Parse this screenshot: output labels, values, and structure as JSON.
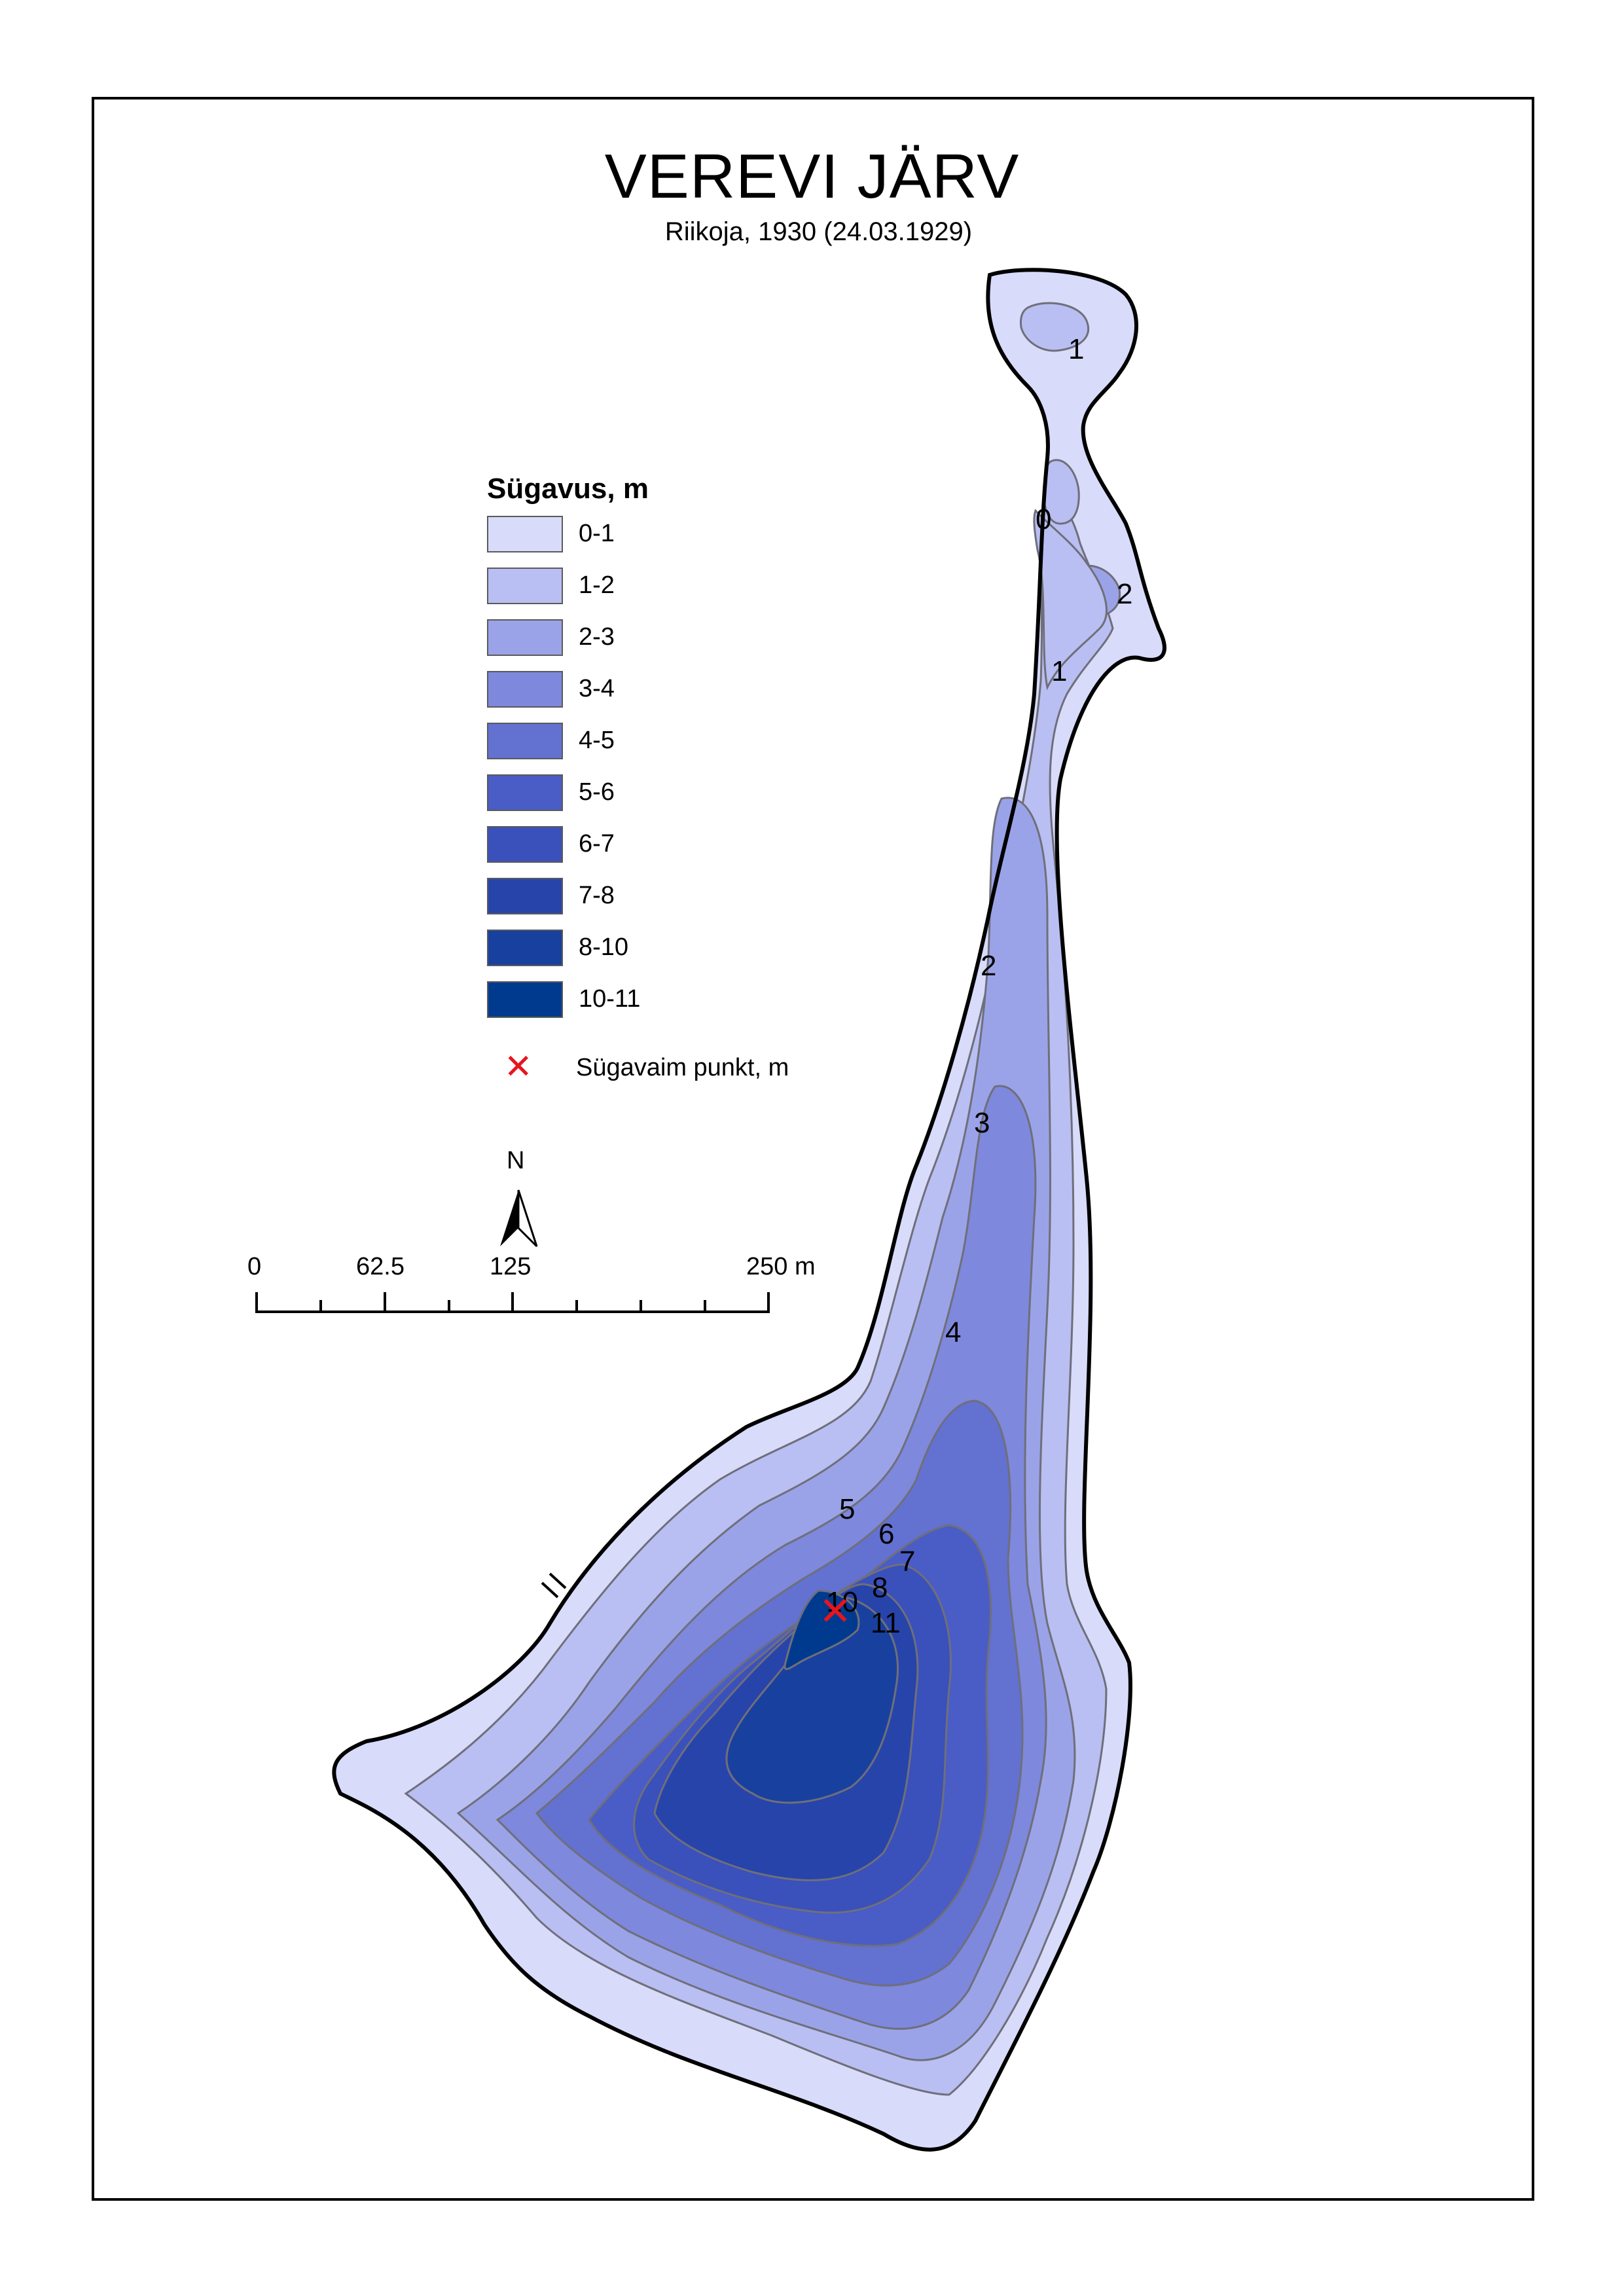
{
  "title": "VEREVI JÄRV",
  "subtitle": "Riikoja, 1930 (24.03.1929)",
  "legend": {
    "title": "Sügavus, m",
    "classes": [
      {
        "label": "0-1",
        "color": "#d8dbfa"
      },
      {
        "label": "1-2",
        "color": "#b9bff2"
      },
      {
        "label": "2-3",
        "color": "#9ba3e8"
      },
      {
        "label": "3-4",
        "color": "#7e88dc"
      },
      {
        "label": "4-5",
        "color": "#6371d1"
      },
      {
        "label": "5-6",
        "color": "#4a5cc5"
      },
      {
        "label": "6-7",
        "color": "#3a50bb"
      },
      {
        "label": "7-8",
        "color": "#2744ab"
      },
      {
        "label": "8-10",
        "color": "#18409f"
      },
      {
        "label": "10-11",
        "color": "#003a8f"
      }
    ],
    "deepest_point": {
      "label": "Sügavaim punkt, m",
      "symbol": "✕",
      "color": "#e8141e"
    }
  },
  "north_arrow": {
    "label": "N"
  },
  "scale_bar": {
    "labels": [
      "0",
      "62.5",
      "125",
      "250 m"
    ]
  },
  "depth_labels": [
    "1",
    "0",
    "2",
    "1",
    "2",
    "3",
    "4",
    "5",
    "6",
    "7",
    "8",
    "10",
    "11"
  ],
  "deepest_value": "11"
}
